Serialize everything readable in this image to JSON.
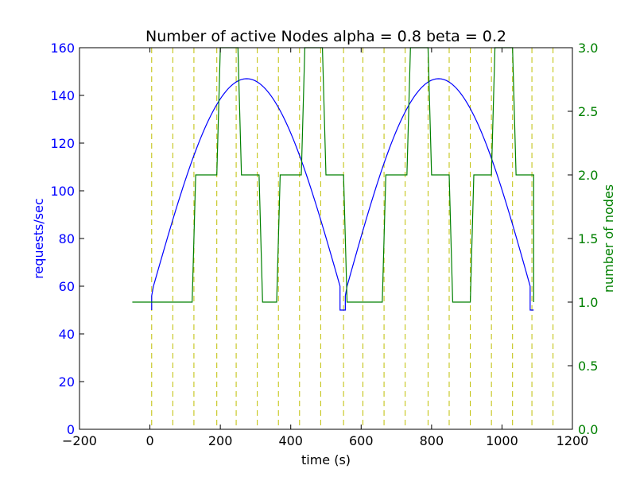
{
  "chart_data": {
    "type": "line",
    "title": "Number of active Nodes alpha = 0.8 beta = 0.2",
    "xlabel": "time (s)",
    "ylabel": "requests/sec",
    "y2label": "number of nodes",
    "xlim": [
      -200,
      1200
    ],
    "ylim": [
      0,
      160
    ],
    "y2lim": [
      0,
      3
    ],
    "xticks": [
      -200,
      0,
      200,
      400,
      600,
      800,
      1000,
      1200
    ],
    "yticks": [
      0,
      20,
      40,
      60,
      80,
      100,
      120,
      140,
      160
    ],
    "y2ticks": [
      "0.0",
      "0.5",
      "1.0",
      "1.5",
      "2.0",
      "2.5",
      "3.0"
    ],
    "grid": false,
    "colors": {
      "requests": "#0000ff",
      "nodes": "#008000",
      "vlines": "#bfbf00",
      "axes": "#000000"
    },
    "series": [
      {
        "name": "requests/sec",
        "axis": "left",
        "style": "line",
        "x": [
          5,
          5,
          10,
          540,
          540,
          555,
          555,
          560,
          1080,
          1080,
          1090
        ],
        "y": [
          50,
          56,
          60,
          60,
          50,
          50,
          56,
          60,
          60,
          50,
          50
        ],
        "model": "y = 60 + 87*sin(pi*(x-10)/530) on 10..540 and 560..1080"
      },
      {
        "name": "number of nodes",
        "axis": "right",
        "style": "step",
        "x": [
          -50,
          0,
          120,
          130,
          190,
          200,
          250,
          260,
          310,
          320,
          360,
          370,
          430,
          440,
          490,
          500,
          550,
          560,
          660,
          670,
          730,
          740,
          790,
          800,
          850,
          860,
          910,
          920,
          970,
          980,
          1030,
          1040,
          1090,
          1090
        ],
        "y": [
          1,
          1,
          1,
          2,
          2,
          3,
          3,
          2,
          2,
          1,
          1,
          2,
          2,
          3,
          3,
          2,
          2,
          1,
          1,
          2,
          2,
          3,
          3,
          2,
          2,
          1,
          1,
          2,
          2,
          3,
          3,
          2,
          2,
          1
        ]
      }
    ],
    "vlines": [
      5,
      65,
      125,
      190,
      245,
      305,
      365,
      425,
      485,
      550,
      605,
      665,
      725,
      790,
      850,
      910,
      970,
      1030,
      1085,
      1145
    ]
  }
}
